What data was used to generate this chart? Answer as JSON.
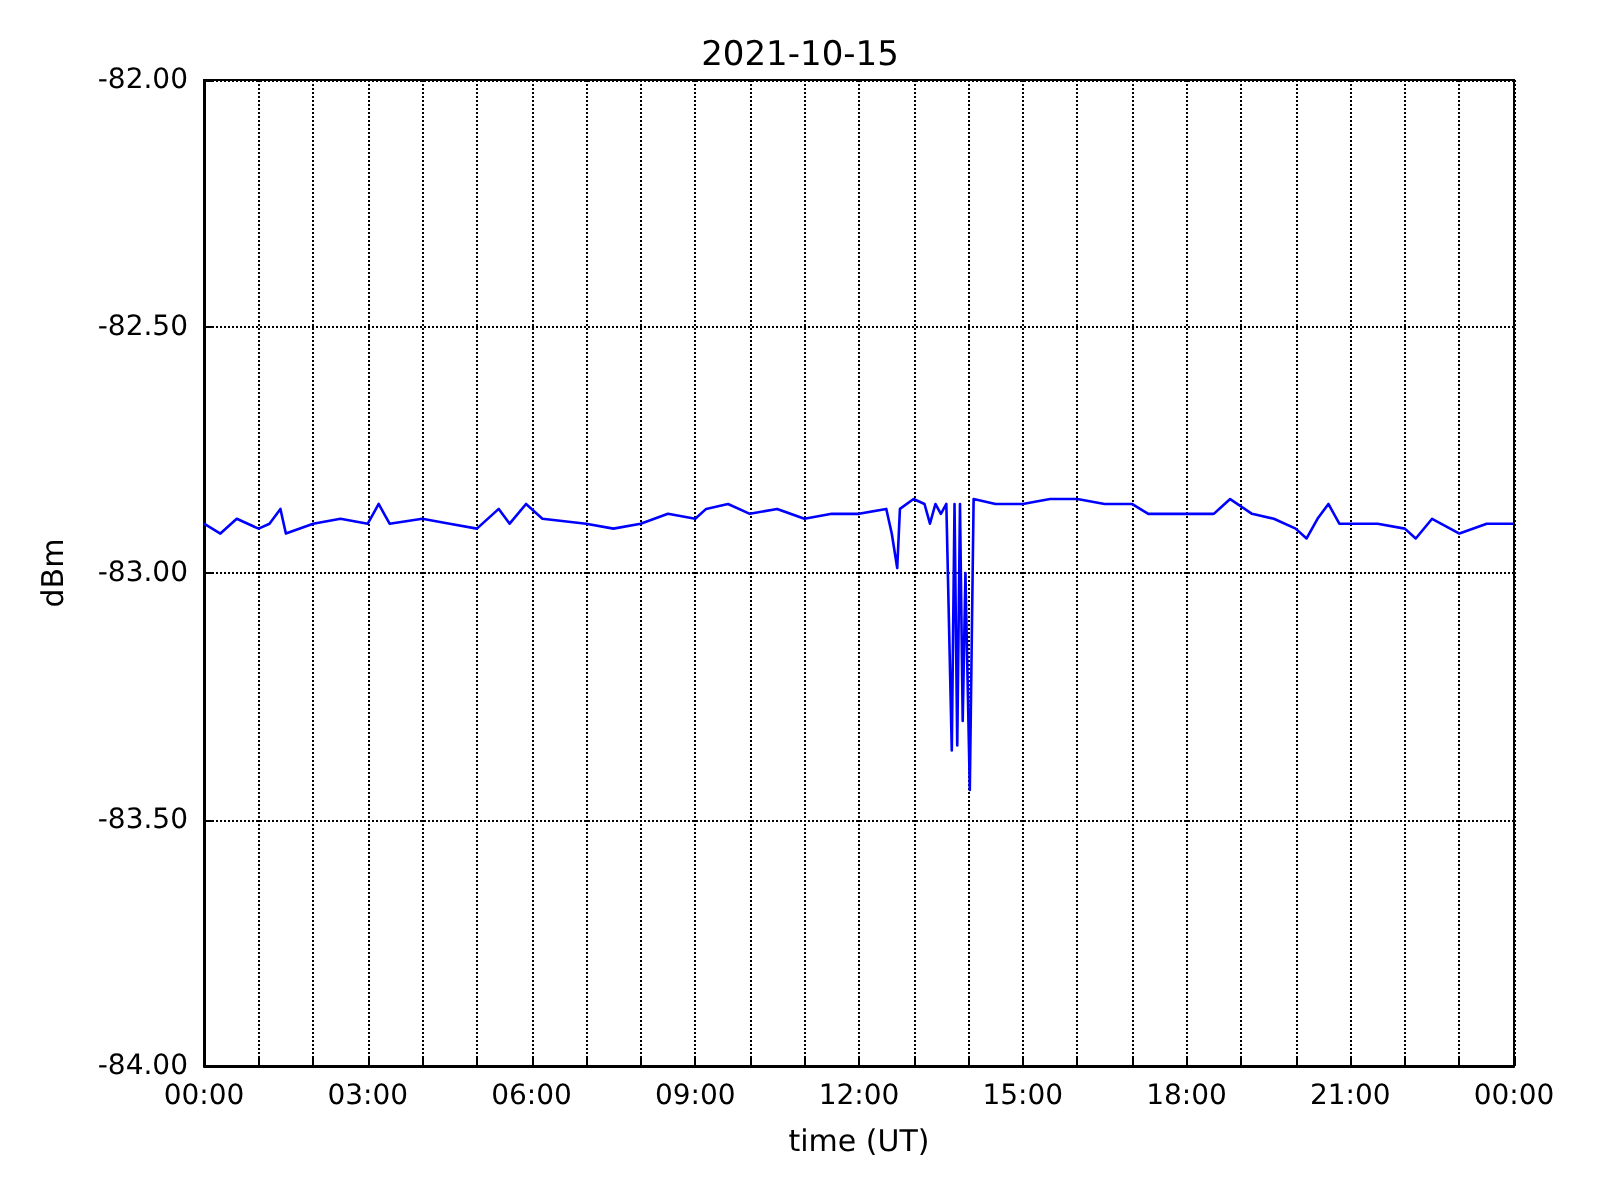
{
  "chart_data": {
    "type": "line",
    "title": "2021-10-15",
    "xlabel": "time (UT)",
    "ylabel": "dBm",
    "xlim": [
      0,
      24
    ],
    "xticks": [
      {
        "value": 0,
        "label": "00:00"
      },
      {
        "value": 1,
        "label": null
      },
      {
        "value": 2,
        "label": null
      },
      {
        "value": 3,
        "label": "03:00"
      },
      {
        "value": 4,
        "label": null
      },
      {
        "value": 5,
        "label": null
      },
      {
        "value": 6,
        "label": "06:00"
      },
      {
        "value": 7,
        "label": null
      },
      {
        "value": 8,
        "label": null
      },
      {
        "value": 9,
        "label": "09:00"
      },
      {
        "value": 10,
        "label": null
      },
      {
        "value": 11,
        "label": null
      },
      {
        "value": 12,
        "label": "12:00"
      },
      {
        "value": 13,
        "label": null
      },
      {
        "value": 14,
        "label": null
      },
      {
        "value": 15,
        "label": "15:00"
      },
      {
        "value": 16,
        "label": null
      },
      {
        "value": 17,
        "label": null
      },
      {
        "value": 18,
        "label": "18:00"
      },
      {
        "value": 19,
        "label": null
      },
      {
        "value": 20,
        "label": null
      },
      {
        "value": 21,
        "label": "21:00"
      },
      {
        "value": 22,
        "label": null
      },
      {
        "value": 23,
        "label": null
      },
      {
        "value": 24,
        "label": "00:00"
      }
    ],
    "ylim": [
      -84,
      -82
    ],
    "yticks": [
      {
        "value": -84,
        "label": "-84.00"
      },
      {
        "value": -83.5,
        "label": "-83.50"
      },
      {
        "value": -83,
        "label": "-83.00"
      },
      {
        "value": -82.5,
        "label": "-82.50"
      },
      {
        "value": -82,
        "label": "-82.00"
      }
    ],
    "grid": true,
    "marker": "none",
    "line_style": "solid",
    "series": [
      {
        "color": "#0000ff",
        "x": [
          0,
          0.3,
          0.6,
          1.0,
          1.2,
          1.4,
          1.5,
          2.0,
          2.5,
          3.0,
          3.2,
          3.4,
          4.0,
          4.5,
          5.0,
          5.4,
          5.6,
          5.9,
          6.2,
          7.0,
          7.5,
          8.0,
          8.5,
          9.0,
          9.2,
          9.6,
          10.0,
          10.5,
          11.0,
          11.5,
          12.0,
          12.5,
          12.6,
          12.7,
          12.75,
          13.0,
          13.2,
          13.3,
          13.4,
          13.5,
          13.6,
          13.7,
          13.75,
          13.8,
          13.85,
          13.9,
          13.95,
          14.03,
          14.1,
          14.5,
          15.0,
          15.5,
          16.0,
          16.5,
          17.0,
          17.3,
          18.0,
          18.5,
          18.8,
          19.2,
          19.6,
          20.0,
          20.2,
          20.4,
          20.6,
          20.8,
          21.5,
          22.0,
          22.2,
          22.5,
          23.0,
          23.5,
          24.0
        ],
        "values": [
          -82.9,
          -82.92,
          -82.89,
          -82.91,
          -82.9,
          -82.87,
          -82.92,
          -82.9,
          -82.89,
          -82.9,
          -82.86,
          -82.9,
          -82.89,
          -82.9,
          -82.91,
          -82.87,
          -82.9,
          -82.86,
          -82.89,
          -82.9,
          -82.91,
          -82.9,
          -82.88,
          -82.89,
          -82.87,
          -82.86,
          -82.88,
          -82.87,
          -82.89,
          -82.88,
          -82.88,
          -82.87,
          -82.92,
          -82.99,
          -82.87,
          -82.85,
          -82.86,
          -82.9,
          -82.86,
          -82.88,
          -82.86,
          -83.36,
          -82.86,
          -83.35,
          -82.86,
          -83.3,
          -83.0,
          -83.44,
          -82.85,
          -82.86,
          -82.86,
          -82.85,
          -82.85,
          -82.86,
          -82.86,
          -82.88,
          -82.88,
          -82.88,
          -82.85,
          -82.88,
          -82.89,
          -82.91,
          -82.93,
          -82.89,
          -82.86,
          -82.9,
          -82.9,
          -82.91,
          -82.93,
          -82.89,
          -82.92,
          -82.9,
          -82.9
        ]
      }
    ]
  }
}
